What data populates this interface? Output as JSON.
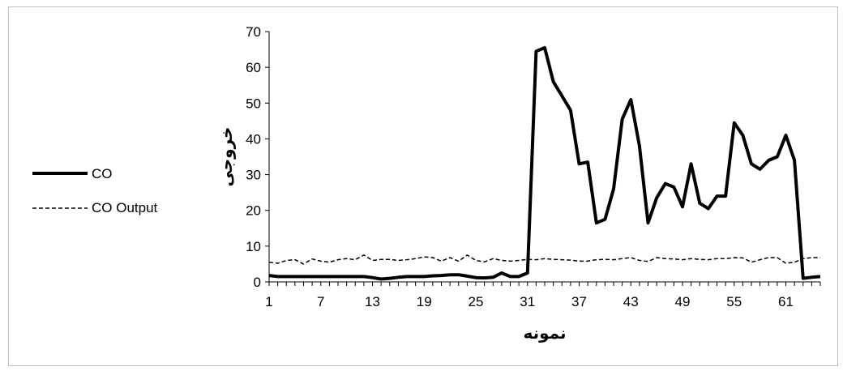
{
  "chart_data": {
    "type": "line",
    "xlabel": "نمونه",
    "ylabel": "خروجی",
    "ylim": [
      0,
      70
    ],
    "yticks": [
      0,
      10,
      20,
      30,
      40,
      50,
      60,
      70
    ],
    "xtick_labels": [
      "1",
      "7",
      "13",
      "19",
      "25",
      "31",
      "37",
      "43",
      "49",
      "55",
      "61"
    ],
    "grid": false,
    "legend_position": "left",
    "x": [
      1,
      2,
      3,
      4,
      5,
      6,
      7,
      8,
      9,
      10,
      11,
      12,
      13,
      14,
      15,
      16,
      17,
      18,
      19,
      20,
      21,
      22,
      23,
      24,
      25,
      26,
      27,
      28,
      29,
      30,
      31,
      32,
      33,
      34,
      35,
      36,
      37,
      38,
      39,
      40,
      41,
      42,
      43,
      44,
      45,
      46,
      47,
      48,
      49,
      50,
      51,
      52,
      53,
      54,
      55,
      56,
      57,
      58,
      59,
      60,
      61,
      62,
      63,
      64,
      65
    ],
    "series": [
      {
        "name": "CO",
        "style": "solid",
        "color": "#000000",
        "values": [
          1.8,
          1.5,
          1.5,
          1.5,
          1.5,
          1.5,
          1.5,
          1.5,
          1.5,
          1.5,
          1.5,
          1.5,
          1.2,
          0.8,
          1.0,
          1.3,
          1.5,
          1.5,
          1.5,
          1.7,
          1.8,
          2.0,
          2.0,
          1.6,
          1.2,
          1.1,
          1.3,
          2.5,
          1.5,
          1.5,
          2.5,
          64.5,
          65.5,
          56,
          52,
          48,
          33,
          33.5,
          16.5,
          17.5,
          26,
          45.5,
          51,
          38,
          16.5,
          23.5,
          27.5,
          26.5,
          21,
          33,
          22,
          20.5,
          24,
          24,
          44.5,
          41,
          33,
          31.5,
          34,
          35,
          41,
          34,
          1.0,
          1.3,
          1.5
        ]
      },
      {
        "name": "CO Output",
        "style": "dashed",
        "color": "#000000",
        "values": [
          5.5,
          5.2,
          6.0,
          6.2,
          5.0,
          6.4,
          5.8,
          5.5,
          6.2,
          6.5,
          6.2,
          7.5,
          6.0,
          6.3,
          6.3,
          6.0,
          6.2,
          6.5,
          7.0,
          6.8,
          5.8,
          6.8,
          5.8,
          7.5,
          6.0,
          5.6,
          6.5,
          6.0,
          5.8,
          6.0,
          6.3,
          6.2,
          6.5,
          6.3,
          6.2,
          6.1,
          5.8,
          5.8,
          6.2,
          6.3,
          6.2,
          6.5,
          6.8,
          6.0,
          5.7,
          6.8,
          6.5,
          6.4,
          6.2,
          6.5,
          6.3,
          6.2,
          6.5,
          6.5,
          6.8,
          6.7,
          5.5,
          6.2,
          6.8,
          6.8,
          5.2,
          5.5,
          6.5,
          6.8,
          6.8
        ]
      }
    ]
  }
}
